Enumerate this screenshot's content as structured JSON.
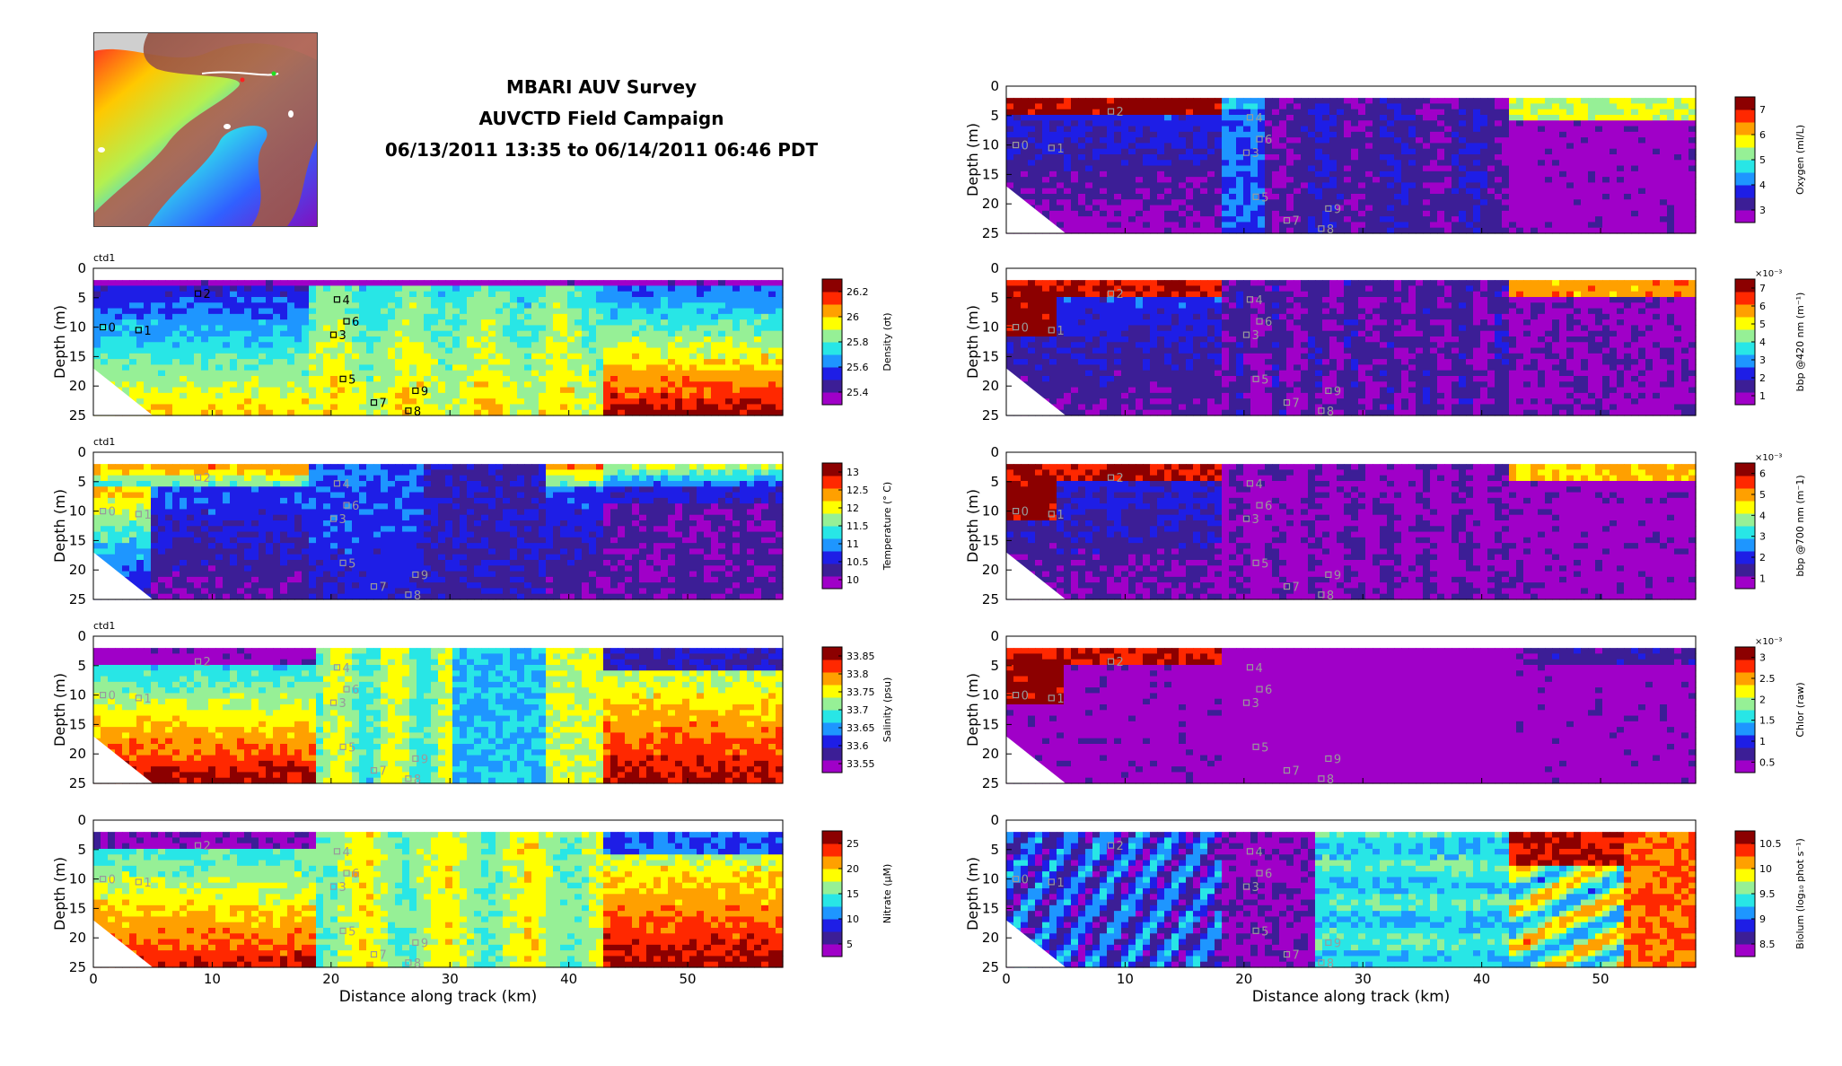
{
  "header": {
    "title_lines": [
      "MBARI AUV Survey",
      "AUVCTD Field Campaign",
      "06/13/2011 13:35 to 06/14/2011 06:46 PDT"
    ]
  },
  "colors": {
    "colormap": [
      "#a000c8",
      "#3c1e96",
      "#1e1ee6",
      "#1e96ff",
      "#28e6e6",
      "#96f096",
      "#ffff00",
      "#ffa000",
      "#ff2800",
      "#8c0000"
    ],
    "waypoint_marker": "#000000",
    "faded_marker": "#9a9a9a"
  },
  "chart_data": [
    {
      "type": "heatmap",
      "panel": "density",
      "tag": "ctd1",
      "xlabel": "",
      "ylabel": "Depth (m)",
      "xlim": [
        0,
        58
      ],
      "ylim": [
        25,
        0
      ],
      "yticks": [
        0,
        5,
        10,
        15,
        20,
        25
      ],
      "xticks": [
        0,
        10,
        20,
        30,
        40,
        50
      ],
      "show_xtick_labels": false,
      "colorbar": {
        "label": "Density (σt)",
        "ticks": [
          "25.4",
          "25.6",
          "25.8",
          "26",
          "26.2"
        ],
        "exponent": "",
        "reversed": false
      },
      "waypoints": [
        {
          "label": "0",
          "x": 0.8,
          "y": 10
        },
        {
          "label": "1",
          "x": 3.8,
          "y": 10.5
        },
        {
          "label": "2",
          "x": 8.8,
          "y": 4.3
        },
        {
          "label": "3",
          "x": 20.2,
          "y": 11.3
        },
        {
          "label": "4",
          "x": 20.5,
          "y": 5.3
        },
        {
          "label": "5",
          "x": 21,
          "y": 18.8
        },
        {
          "label": "6",
          "x": 21.3,
          "y": 9
        },
        {
          "label": "7",
          "x": 23.6,
          "y": 22.8
        },
        {
          "label": "8",
          "x": 26.5,
          "y": 24.2
        },
        {
          "label": "9",
          "x": 27.1,
          "y": 20.8
        }
      ],
      "waypoints_faded": false
    },
    {
      "type": "heatmap",
      "panel": "temperature",
      "tag": "ctd1",
      "xlabel": "",
      "ylabel": "Depth (m)",
      "xlim": [
        0,
        58
      ],
      "ylim": [
        25,
        0
      ],
      "yticks": [
        0,
        5,
        10,
        15,
        20,
        25
      ],
      "xticks": [
        0,
        10,
        20,
        30,
        40,
        50
      ],
      "show_xtick_labels": false,
      "colorbar": {
        "label": "Temperature (° C)",
        "ticks": [
          "10",
          "10.5",
          "11",
          "11.5",
          "12",
          "12.5",
          "13"
        ],
        "exponent": "",
        "reversed": false
      },
      "waypoints": [
        {
          "label": "0",
          "x": 0.8,
          "y": 10
        },
        {
          "label": "1",
          "x": 3.8,
          "y": 10.5
        },
        {
          "label": "2",
          "x": 8.8,
          "y": 4.3
        },
        {
          "label": "3",
          "x": 20.2,
          "y": 11.3
        },
        {
          "label": "4",
          "x": 20.5,
          "y": 5.3
        },
        {
          "label": "5",
          "x": 21,
          "y": 18.8
        },
        {
          "label": "6",
          "x": 21.3,
          "y": 9
        },
        {
          "label": "7",
          "x": 23.6,
          "y": 22.8
        },
        {
          "label": "8",
          "x": 26.5,
          "y": 24.2
        },
        {
          "label": "9",
          "x": 27.1,
          "y": 20.8
        }
      ],
      "waypoints_faded": true
    },
    {
      "type": "heatmap",
      "panel": "salinity",
      "tag": "ctd1",
      "xlabel": "",
      "ylabel": "Depth (m)",
      "xlim": [
        0,
        58
      ],
      "ylim": [
        25,
        0
      ],
      "yticks": [
        0,
        5,
        10,
        15,
        20,
        25
      ],
      "xticks": [
        0,
        10,
        20,
        30,
        40,
        50
      ],
      "show_xtick_labels": false,
      "colorbar": {
        "label": "Salinity (psu)",
        "ticks": [
          "33.55",
          "33.6",
          "33.65",
          "33.7",
          "33.75",
          "33.8",
          "33.85"
        ],
        "exponent": "",
        "reversed": false
      },
      "waypoints": [
        {
          "label": "0",
          "x": 0.8,
          "y": 10
        },
        {
          "label": "1",
          "x": 3.8,
          "y": 10.5
        },
        {
          "label": "2",
          "x": 8.8,
          "y": 4.3
        },
        {
          "label": "3",
          "x": 20.2,
          "y": 11.3
        },
        {
          "label": "4",
          "x": 20.5,
          "y": 5.3
        },
        {
          "label": "5",
          "x": 21,
          "y": 18.8
        },
        {
          "label": "6",
          "x": 21.3,
          "y": 9
        },
        {
          "label": "7",
          "x": 23.6,
          "y": 22.8
        },
        {
          "label": "8",
          "x": 26.5,
          "y": 24.2
        },
        {
          "label": "9",
          "x": 27.1,
          "y": 20.8
        }
      ],
      "waypoints_faded": true
    },
    {
      "type": "heatmap",
      "panel": "nitrate",
      "tag": "",
      "xlabel": "Distance along track (km)",
      "ylabel": "Depth (m)",
      "xlim": [
        0,
        58
      ],
      "ylim": [
        25,
        0
      ],
      "yticks": [
        0,
        5,
        10,
        15,
        20,
        25
      ],
      "xticks": [
        0,
        10,
        20,
        30,
        40,
        50
      ],
      "show_xtick_labels": true,
      "colorbar": {
        "label": "Nitrate (μM)",
        "ticks": [
          "5",
          "10",
          "15",
          "20",
          "25"
        ],
        "exponent": "",
        "reversed": false
      },
      "waypoints": [
        {
          "label": "0",
          "x": 0.8,
          "y": 10
        },
        {
          "label": "1",
          "x": 3.8,
          "y": 10.5
        },
        {
          "label": "2",
          "x": 8.8,
          "y": 4.3
        },
        {
          "label": "3",
          "x": 20.2,
          "y": 11.3
        },
        {
          "label": "4",
          "x": 20.5,
          "y": 5.3
        },
        {
          "label": "5",
          "x": 21,
          "y": 18.8
        },
        {
          "label": "6",
          "x": 21.3,
          "y": 9
        },
        {
          "label": "7",
          "x": 23.6,
          "y": 22.8
        },
        {
          "label": "8",
          "x": 26.5,
          "y": 24.2
        },
        {
          "label": "9",
          "x": 27.1,
          "y": 20.8
        }
      ],
      "waypoints_faded": true
    },
    {
      "type": "heatmap",
      "panel": "oxygen",
      "tag": "",
      "xlabel": "",
      "ylabel": "Depth (m)",
      "xlim": [
        0,
        58
      ],
      "ylim": [
        25,
        0
      ],
      "yticks": [
        0,
        5,
        10,
        15,
        20,
        25
      ],
      "xticks": [
        0,
        10,
        20,
        30,
        40,
        50
      ],
      "show_xtick_labels": false,
      "colorbar": {
        "label": "Oxygen (ml/L)",
        "ticks": [
          "3",
          "4",
          "5",
          "6",
          "7"
        ],
        "exponent": "",
        "reversed": false
      },
      "waypoints": [
        {
          "label": "0",
          "x": 0.8,
          "y": 10
        },
        {
          "label": "1",
          "x": 3.8,
          "y": 10.5
        },
        {
          "label": "2",
          "x": 8.8,
          "y": 4.3
        },
        {
          "label": "3",
          "x": 20.2,
          "y": 11.3
        },
        {
          "label": "4",
          "x": 20.5,
          "y": 5.3
        },
        {
          "label": "5",
          "x": 21,
          "y": 18.8
        },
        {
          "label": "6",
          "x": 21.3,
          "y": 9
        },
        {
          "label": "7",
          "x": 23.6,
          "y": 22.8
        },
        {
          "label": "8",
          "x": 26.5,
          "y": 24.2
        },
        {
          "label": "9",
          "x": 27.1,
          "y": 20.8
        }
      ],
      "waypoints_faded": true
    },
    {
      "type": "heatmap",
      "panel": "bbp420",
      "tag": "",
      "xlabel": "",
      "ylabel": "Depth (m)",
      "xlim": [
        0,
        58
      ],
      "ylim": [
        25,
        0
      ],
      "yticks": [
        0,
        5,
        10,
        15,
        20,
        25
      ],
      "xticks": [
        0,
        10,
        20,
        30,
        40,
        50
      ],
      "show_xtick_labels": false,
      "colorbar": {
        "label": "bbp @420 nm (m⁻¹)",
        "ticks": [
          "1",
          "2",
          "3",
          "4",
          "5",
          "6",
          "7"
        ],
        "exponent": "×10⁻³",
        "reversed": false
      },
      "waypoints": [
        {
          "label": "0",
          "x": 0.8,
          "y": 10
        },
        {
          "label": "1",
          "x": 3.8,
          "y": 10.5
        },
        {
          "label": "2",
          "x": 8.8,
          "y": 4.3
        },
        {
          "label": "3",
          "x": 20.2,
          "y": 11.3
        },
        {
          "label": "4",
          "x": 20.5,
          "y": 5.3
        },
        {
          "label": "5",
          "x": 21,
          "y": 18.8
        },
        {
          "label": "6",
          "x": 21.3,
          "y": 9
        },
        {
          "label": "7",
          "x": 23.6,
          "y": 22.8
        },
        {
          "label": "8",
          "x": 26.5,
          "y": 24.2
        },
        {
          "label": "9",
          "x": 27.1,
          "y": 20.8
        }
      ],
      "waypoints_faded": true
    },
    {
      "type": "heatmap",
      "panel": "bbp700",
      "tag": "",
      "xlabel": "",
      "ylabel": "Depth (m)",
      "xlim": [
        0,
        58
      ],
      "ylim": [
        25,
        0
      ],
      "yticks": [
        0,
        5,
        10,
        15,
        20,
        25
      ],
      "xticks": [
        0,
        10,
        20,
        30,
        40,
        50
      ],
      "show_xtick_labels": false,
      "colorbar": {
        "label": "bbp @700 nm (m⁻1)",
        "ticks": [
          "1",
          "2",
          "3",
          "4",
          "5",
          "6"
        ],
        "exponent": "×10⁻³",
        "reversed": false
      },
      "waypoints": [
        {
          "label": "0",
          "x": 0.8,
          "y": 10
        },
        {
          "label": "1",
          "x": 3.8,
          "y": 10.5
        },
        {
          "label": "2",
          "x": 8.8,
          "y": 4.3
        },
        {
          "label": "3",
          "x": 20.2,
          "y": 11.3
        },
        {
          "label": "4",
          "x": 20.5,
          "y": 5.3
        },
        {
          "label": "5",
          "x": 21,
          "y": 18.8
        },
        {
          "label": "6",
          "x": 21.3,
          "y": 9
        },
        {
          "label": "7",
          "x": 23.6,
          "y": 22.8
        },
        {
          "label": "8",
          "x": 26.5,
          "y": 24.2
        },
        {
          "label": "9",
          "x": 27.1,
          "y": 20.8
        }
      ],
      "waypoints_faded": true
    },
    {
      "type": "heatmap",
      "panel": "chlor",
      "tag": "",
      "xlabel": "",
      "ylabel": "Depth (m)",
      "xlim": [
        0,
        58
      ],
      "ylim": [
        25,
        0
      ],
      "yticks": [
        0,
        5,
        10,
        15,
        20,
        25
      ],
      "xticks": [
        0,
        10,
        20,
        30,
        40,
        50
      ],
      "show_xtick_labels": false,
      "colorbar": {
        "label": "Chlor (raw)",
        "ticks": [
          "0.5",
          "1",
          "1.5",
          "2",
          "2.5",
          "3"
        ],
        "exponent": "×10⁻³",
        "reversed": false
      },
      "waypoints": [
        {
          "label": "0",
          "x": 0.8,
          "y": 10
        },
        {
          "label": "1",
          "x": 3.8,
          "y": 10.5
        },
        {
          "label": "2",
          "x": 8.8,
          "y": 4.3
        },
        {
          "label": "3",
          "x": 20.2,
          "y": 11.3
        },
        {
          "label": "4",
          "x": 20.5,
          "y": 5.3
        },
        {
          "label": "5",
          "x": 21,
          "y": 18.8
        },
        {
          "label": "6",
          "x": 21.3,
          "y": 9
        },
        {
          "label": "7",
          "x": 23.6,
          "y": 22.8
        },
        {
          "label": "8",
          "x": 26.5,
          "y": 24.2
        },
        {
          "label": "9",
          "x": 27.1,
          "y": 20.8
        }
      ],
      "waypoints_faded": true
    },
    {
      "type": "heatmap",
      "panel": "biolum",
      "tag": "",
      "xlabel": "Distance along track (km)",
      "ylabel": "Depth (m)",
      "xlim": [
        0,
        58
      ],
      "ylim": [
        25,
        0
      ],
      "yticks": [
        0,
        5,
        10,
        15,
        20,
        25
      ],
      "xticks": [
        0,
        10,
        20,
        30,
        40,
        50
      ],
      "show_xtick_labels": true,
      "colorbar": {
        "label": "Biolum (log₁₀ phot s⁻¹)",
        "ticks": [
          "8.5",
          "9",
          "9.5",
          "10",
          "10.5"
        ],
        "exponent": "",
        "reversed": false
      },
      "waypoints": [
        {
          "label": "0",
          "x": 0.8,
          "y": 10
        },
        {
          "label": "1",
          "x": 3.8,
          "y": 10.5
        },
        {
          "label": "2",
          "x": 8.8,
          "y": 4.3
        },
        {
          "label": "3",
          "x": 20.2,
          "y": 11.3
        },
        {
          "label": "4",
          "x": 20.5,
          "y": 5.3
        },
        {
          "label": "5",
          "x": 21,
          "y": 18.8
        },
        {
          "label": "6",
          "x": 21.3,
          "y": 9
        },
        {
          "label": "7",
          "x": 23.6,
          "y": 22.8
        },
        {
          "label": "8",
          "x": 26.5,
          "y": 24.2
        },
        {
          "label": "9",
          "x": 27.1,
          "y": 20.8
        }
      ],
      "waypoints_faded": true
    }
  ]
}
